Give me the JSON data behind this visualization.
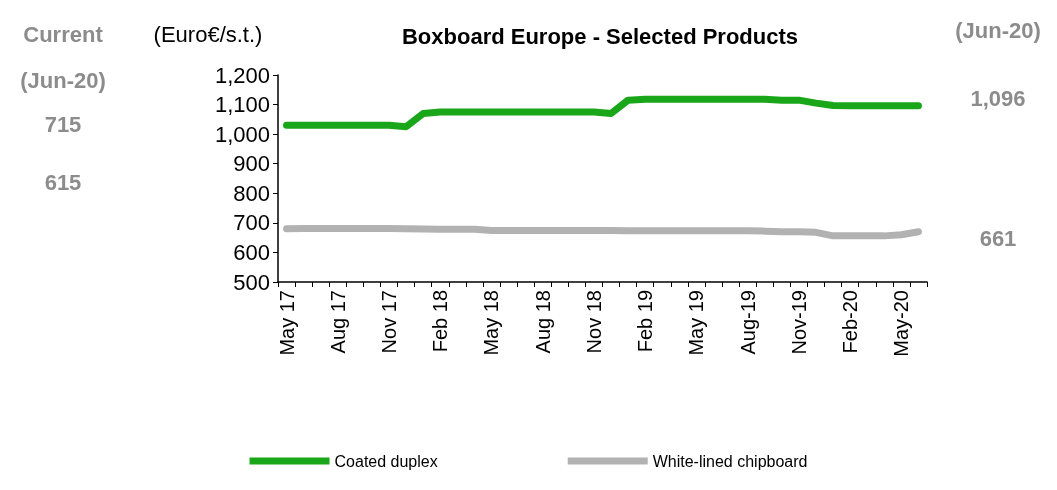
{
  "chart_data": {
    "type": "line",
    "title": "Boxboard Europe - Selected Products",
    "ylabel": "(Euro€/s.t.)",
    "categories": [
      "May 17",
      null,
      null,
      "Aug 17",
      null,
      null,
      "Nov 17",
      null,
      null,
      "Feb 18",
      null,
      null,
      "May 18",
      null,
      null,
      "Aug 18",
      null,
      null,
      "Nov 18",
      null,
      null,
      "Feb 19",
      null,
      null,
      "May 19",
      null,
      null,
      "Aug-19",
      null,
      null,
      "Nov-19",
      null,
      null,
      "Feb-20",
      null,
      null,
      "May-20",
      null
    ],
    "series": [
      {
        "name": "Coated duplex",
        "color": "#19a619",
        "values": [
          1030,
          1030,
          1030,
          1030,
          1030,
          1030,
          1030,
          1025,
          1070,
          1075,
          1075,
          1075,
          1075,
          1075,
          1075,
          1075,
          1075,
          1075,
          1075,
          1070,
          1115,
          1118,
          1118,
          1118,
          1118,
          1118,
          1118,
          1118,
          1118,
          1115,
          1115,
          1105,
          1097,
          1096,
          1096,
          1096,
          1096,
          1096
        ]
      },
      {
        "name": "White-lined chipboard",
        "color": "#b2b2b2",
        "values": [
          680,
          681,
          681,
          681,
          681,
          681,
          681,
          680,
          679,
          678,
          678,
          678,
          674,
          674,
          674,
          674,
          674,
          674,
          674,
          674,
          673,
          673,
          673,
          673,
          673,
          673,
          673,
          673,
          672,
          670,
          670,
          668,
          656,
          656,
          656,
          656,
          660,
          670
        ]
      }
    ],
    "ylim": [
      500,
      1200
    ],
    "yticks": [
      500,
      600,
      700,
      800,
      900,
      {
        "value": 1000,
        "label": "1,000"
      },
      {
        "value": 1100,
        "label": "1,100"
      },
      {
        "value": 1200,
        "label": "1,200"
      }
    ],
    "grid": false,
    "legend": "bottom",
    "marker": "none",
    "line_style": "solid",
    "annotations": [
      "Current",
      "(Jun-20)",
      "715",
      "615",
      "(Jun-20)",
      "1,096",
      "661"
    ]
  }
}
